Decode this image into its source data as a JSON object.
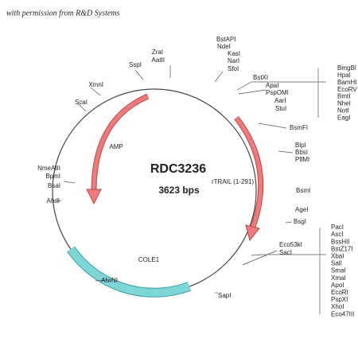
{
  "header": {
    "note": "with permission from R&D Systems"
  },
  "plasmid": {
    "name": "RDC3236",
    "size": "3623 bps"
  },
  "features": [
    "AMP",
    "rTRAIL (1-291)",
    "COLE1"
  ],
  "sites": [
    "ZraI",
    "AatII",
    "SspI",
    "BstAPI",
    "NdeI",
    "KasI",
    "NarI",
    "SfoI",
    "BstXI",
    "ApaI",
    "PspOMI",
    "AarI",
    "StuI",
    "BsmFI",
    "BlpI",
    "BbsI",
    "PflMI",
    "BsmI",
    "AgeI",
    "BsgI",
    "Eco53kI",
    "SacI",
    "SapI",
    "AlwNI",
    "AhdI",
    "NmeAIII",
    "BpmI",
    "BsaI",
    "ScaI",
    "XmnI"
  ],
  "site_groups": [
    [
      "BmgBI",
      "HpaI",
      "BamHI",
      "EcoRV",
      "BmtI",
      "NheI",
      "NotI",
      "EagI"
    ],
    [
      "PacI",
      "AscI",
      "BssHII",
      "BstZ17I",
      "XbaI",
      "SalI",
      "SmaI",
      "XmaI",
      "ApoI",
      "EcoRI",
      "PspXI",
      "XhoI",
      "Eco47III"
    ]
  ]
}
